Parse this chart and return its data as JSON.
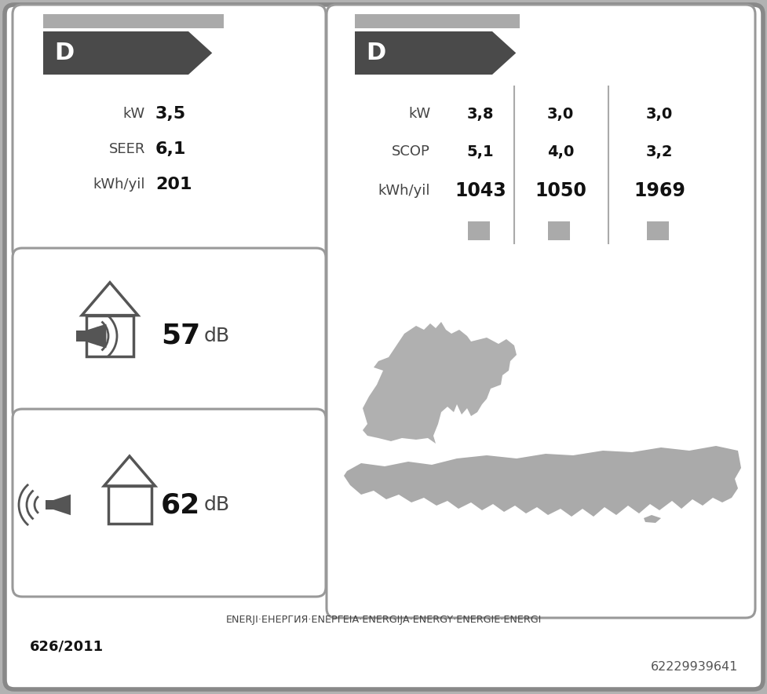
{
  "bg_outer": "#b2b2b2",
  "bg_inner": "#ffffff",
  "border_outer": "#888888",
  "border_panel": "#999999",
  "arrow_color": "#4a4a4a",
  "sq_gray": "#aaaaaa",
  "text_dark": "#111111",
  "text_mid": "#444444",
  "left_top": {
    "label": "D",
    "kw_label": "kW",
    "kw_val": "3,5",
    "seer_label": "SEER",
    "seer_val": "6,1",
    "kwh_label": "kWh/yil",
    "kwh_val": "201"
  },
  "right_top": {
    "label": "D",
    "row_labels": [
      "kW",
      "SCOP",
      "kWh/yil"
    ],
    "col1": [
      "3,8",
      "5,1",
      "1043"
    ],
    "col2": [
      "3,0",
      "4,0",
      "1050"
    ],
    "col3": [
      "3,0",
      "3,2",
      "1969"
    ]
  },
  "indoor_db": "57",
  "outdoor_db": "62",
  "footer": "ENERJI·ЕНЕРГИЯ·ΕΝΕΡΓΕΙΑ·ENERGIJA·ENERGY·ENERGIE·ENERGI",
  "regulation": "626/2011",
  "barcode": "62229939641"
}
